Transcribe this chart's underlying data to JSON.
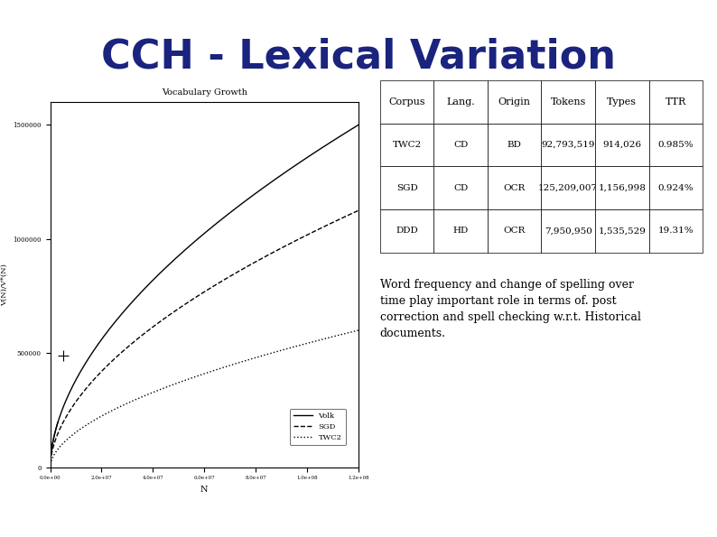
{
  "title": "CCH - Lexical Variation",
  "title_color": "#1a237e",
  "title_fontsize": 32,
  "title_fontweight": "bold",
  "background_color": "#ffffff",
  "plot_title": "Vocabulary Growth",
  "xlabel": "N",
  "ylabel": "V(N)/V*(N)",
  "table_headers": [
    "Corpus",
    "Lang.",
    "Origin",
    "Tokens",
    "Types",
    "TTR"
  ],
  "table_rows": [
    [
      "TWC2",
      "CD",
      "BD",
      "92,793,519",
      "914,026",
      "0.985%"
    ],
    [
      "SGD",
      "CD",
      "OCR",
      "125,209,007",
      "1,156,998",
      "0.924%"
    ],
    [
      "DDD",
      "HD",
      "OCR",
      "7,950,950",
      "1,535,529",
      "19.31%"
    ]
  ],
  "description": "Word frequency and change of spelling over\ntime play important role in terms of. post\ncorrection and spell checking w.r.t. Historical\ndocuments.",
  "legend_entries": [
    "Volk",
    "SGD",
    "TWC2"
  ],
  "plot_color": "#000000",
  "ylim_plot": [
    0,
    1600000
  ],
  "xlim_plot": [
    0,
    120000000.0
  ]
}
